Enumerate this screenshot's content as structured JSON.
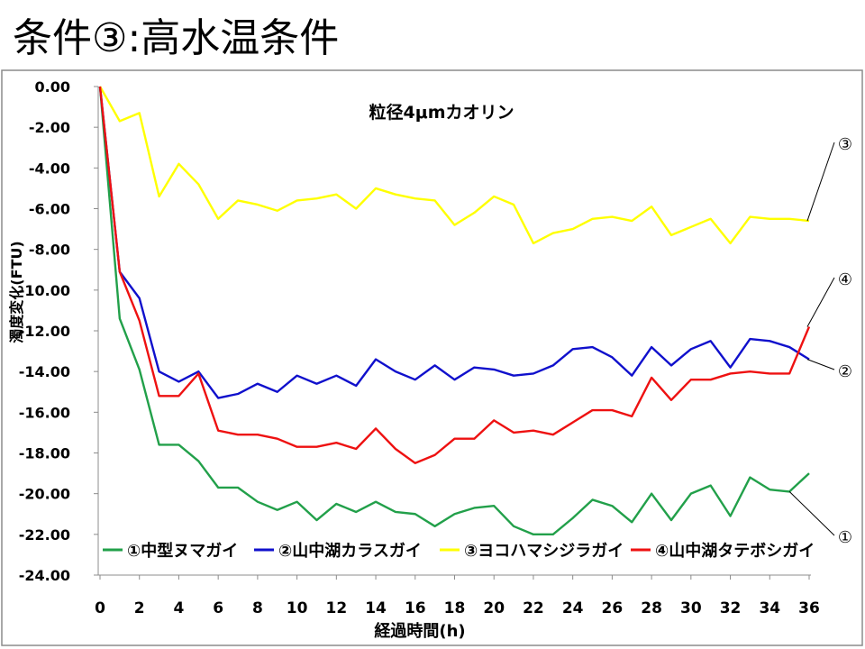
{
  "slide": {
    "title": "条件③:高水温条件"
  },
  "chart_data": {
    "type": "line",
    "title": "粒径4μmカオリン",
    "xlabel": "経過時間(h)",
    "ylabel": "濁度変化(FTU)",
    "xlim": [
      0,
      36
    ],
    "ylim": [
      -24,
      0
    ],
    "x_ticks": [
      0,
      2,
      4,
      6,
      8,
      10,
      12,
      14,
      16,
      18,
      20,
      22,
      24,
      26,
      28,
      30,
      32,
      34,
      36
    ],
    "y_ticks": [
      0,
      -2,
      -4,
      -6,
      -8,
      -10,
      -12,
      -14,
      -16,
      -18,
      -20,
      -22,
      -24
    ],
    "grid": false,
    "legend_position": "bottom",
    "x": [
      0,
      1,
      2,
      3,
      4,
      5,
      6,
      7,
      8,
      9,
      10,
      11,
      12,
      13,
      14,
      15,
      16,
      17,
      18,
      19,
      20,
      21,
      22,
      23,
      24,
      25,
      26,
      27,
      28,
      29,
      30,
      31,
      32,
      33,
      34,
      35,
      36
    ],
    "series": [
      {
        "name": "①中型ヌマガイ",
        "color": "#22a04a",
        "callout": "①",
        "values": [
          0,
          -11.4,
          -13.9,
          -17.6,
          -17.6,
          -18.4,
          -19.7,
          -19.7,
          -20.4,
          -20.8,
          -20.4,
          -21.3,
          -20.5,
          -20.9,
          -20.4,
          -20.9,
          -21.0,
          -21.6,
          -21.0,
          -20.7,
          -20.6,
          -21.6,
          -22.0,
          -22.0,
          -21.2,
          -20.3,
          -20.6,
          -21.4,
          -20.0,
          -21.3,
          -20.0,
          -19.6,
          -21.1,
          -19.2,
          -19.8,
          -19.9,
          -19.0
        ]
      },
      {
        "name": "②山中湖カラスガイ",
        "color": "#1010cc",
        "callout": "②",
        "values": [
          0,
          -9.1,
          -10.4,
          -14.0,
          -14.5,
          -14.0,
          -15.3,
          -15.1,
          -14.6,
          -15.0,
          -14.2,
          -14.6,
          -14.2,
          -14.7,
          -13.4,
          -14.0,
          -14.4,
          -13.7,
          -14.4,
          -13.8,
          -13.9,
          -14.2,
          -14.1,
          -13.7,
          -12.9,
          -12.8,
          -13.3,
          -14.2,
          -12.8,
          -13.7,
          -12.9,
          -12.5,
          -13.8,
          -12.4,
          -12.5,
          -12.8,
          -13.4
        ]
      },
      {
        "name": "③ヨコハマシジラガイ",
        "color": "#ffff00",
        "callout": "③",
        "values": [
          0,
          -1.7,
          -1.3,
          -5.4,
          -3.8,
          -4.8,
          -6.5,
          -5.6,
          -5.8,
          -6.1,
          -5.6,
          -5.5,
          -5.3,
          -6.0,
          -5.0,
          -5.3,
          -5.5,
          -5.6,
          -6.8,
          -6.2,
          -5.4,
          -5.8,
          -7.7,
          -7.2,
          -7.0,
          -6.5,
          -6.4,
          -6.6,
          -5.9,
          -7.3,
          -6.9,
          -6.5,
          -7.7,
          -6.4,
          -6.5,
          -6.5,
          -6.6
        ]
      },
      {
        "name": "④山中湖タテボシガイ",
        "color": "#ee1111",
        "callout": "④",
        "values": [
          0,
          -9.1,
          -11.5,
          -15.2,
          -15.2,
          -14.1,
          -16.9,
          -17.1,
          -17.1,
          -17.3,
          -17.7,
          -17.7,
          -17.5,
          -17.8,
          -16.8,
          -17.8,
          -18.5,
          -18.1,
          -17.3,
          -17.3,
          -16.4,
          -17.0,
          -16.9,
          -17.1,
          -16.5,
          -15.9,
          -15.9,
          -16.2,
          -14.3,
          -15.4,
          -14.4,
          -14.4,
          -14.1,
          -14.0,
          -14.1,
          -14.1,
          -11.8
        ]
      }
    ]
  }
}
